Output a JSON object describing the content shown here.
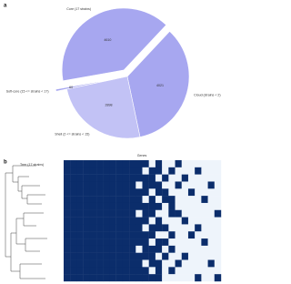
{
  "chart_data": [
    {
      "type": "pie",
      "panel_label": "a",
      "categories": [
        "Core (17 strains)",
        "Cloud (strains < 2)",
        "Shell (2 <= strains < 15)",
        "Soft-core (15 <= strains < 17)"
      ],
      "values": [
        4610,
        4021,
        2898,
        60
      ],
      "colors": [
        "#a7a7f0",
        "#a7a7f0",
        "#c2c2f5",
        "#a7a7f0"
      ]
    },
    {
      "type": "heatmap",
      "panel_label": "b",
      "title": "Genes",
      "tree_label": "Tree (17 strains)",
      "colorscale": [
        "#eef4fb",
        "#0b2d6b"
      ],
      "values": [
        [
          1,
          1,
          1,
          1,
          1,
          1,
          1,
          1,
          1,
          1,
          1,
          1,
          1,
          0,
          1,
          0,
          0,
          1,
          0,
          0,
          0,
          0,
          0,
          0
        ],
        [
          1,
          1,
          1,
          1,
          1,
          1,
          1,
          1,
          1,
          1,
          1,
          1,
          0,
          1,
          1,
          0,
          1,
          0,
          0,
          0,
          1,
          0,
          0,
          0
        ],
        [
          1,
          1,
          1,
          1,
          1,
          1,
          1,
          1,
          1,
          1,
          1,
          1,
          1,
          1,
          0,
          1,
          0,
          0,
          1,
          0,
          0,
          0,
          0,
          0
        ],
        [
          1,
          1,
          1,
          1,
          1,
          1,
          1,
          1,
          1,
          1,
          1,
          0,
          1,
          1,
          1,
          0,
          0,
          1,
          0,
          0,
          0,
          0,
          1,
          0
        ],
        [
          1,
          1,
          1,
          1,
          1,
          1,
          1,
          1,
          1,
          1,
          1,
          1,
          1,
          0,
          1,
          1,
          0,
          0,
          0,
          1,
          0,
          0,
          0,
          0
        ],
        [
          1,
          1,
          1,
          1,
          1,
          1,
          1,
          1,
          1,
          1,
          1,
          1,
          0,
          1,
          0,
          1,
          1,
          0,
          0,
          0,
          0,
          1,
          0,
          0
        ],
        [
          1,
          1,
          1,
          1,
          1,
          1,
          1,
          1,
          1,
          1,
          1,
          1,
          1,
          1,
          1,
          0,
          1,
          0,
          0,
          0,
          0,
          0,
          0,
          0
        ],
        [
          1,
          1,
          1,
          1,
          1,
          1,
          1,
          1,
          1,
          1,
          1,
          0,
          1,
          1,
          0,
          0,
          1,
          1,
          0,
          0,
          0,
          0,
          0,
          1
        ],
        [
          1,
          1,
          1,
          1,
          1,
          1,
          1,
          1,
          1,
          1,
          1,
          1,
          1,
          0,
          1,
          0,
          0,
          0,
          1,
          0,
          0,
          0,
          0,
          0
        ],
        [
          1,
          1,
          1,
          1,
          1,
          1,
          1,
          1,
          1,
          1,
          1,
          1,
          0,
          1,
          1,
          1,
          0,
          0,
          0,
          0,
          1,
          0,
          0,
          0
        ],
        [
          1,
          1,
          1,
          1,
          1,
          1,
          1,
          1,
          1,
          1,
          1,
          1,
          1,
          1,
          0,
          0,
          1,
          0,
          0,
          1,
          0,
          0,
          0,
          0
        ],
        [
          1,
          1,
          1,
          1,
          1,
          1,
          1,
          1,
          1,
          1,
          1,
          1,
          1,
          0,
          1,
          1,
          0,
          0,
          0,
          0,
          0,
          1,
          0,
          0
        ],
        [
          1,
          1,
          1,
          1,
          1,
          1,
          1,
          1,
          1,
          1,
          1,
          0,
          1,
          1,
          1,
          0,
          1,
          0,
          0,
          0,
          0,
          0,
          0,
          0
        ],
        [
          1,
          1,
          1,
          1,
          1,
          1,
          1,
          1,
          1,
          1,
          1,
          1,
          1,
          1,
          0,
          1,
          0,
          0,
          1,
          0,
          0,
          0,
          0,
          0
        ],
        [
          1,
          1,
          1,
          1,
          1,
          1,
          1,
          1,
          1,
          1,
          1,
          1,
          0,
          1,
          1,
          0,
          0,
          1,
          0,
          0,
          0,
          0,
          1,
          0
        ],
        [
          1,
          1,
          1,
          1,
          1,
          1,
          1,
          1,
          1,
          1,
          1,
          1,
          1,
          0,
          1,
          0,
          1,
          0,
          0,
          0,
          0,
          0,
          0,
          0
        ],
        [
          1,
          1,
          1,
          1,
          1,
          1,
          1,
          1,
          1,
          1,
          1,
          1,
          1,
          1,
          1,
          0,
          0,
          0,
          0,
          0,
          1,
          0,
          0,
          1
        ]
      ]
    }
  ]
}
